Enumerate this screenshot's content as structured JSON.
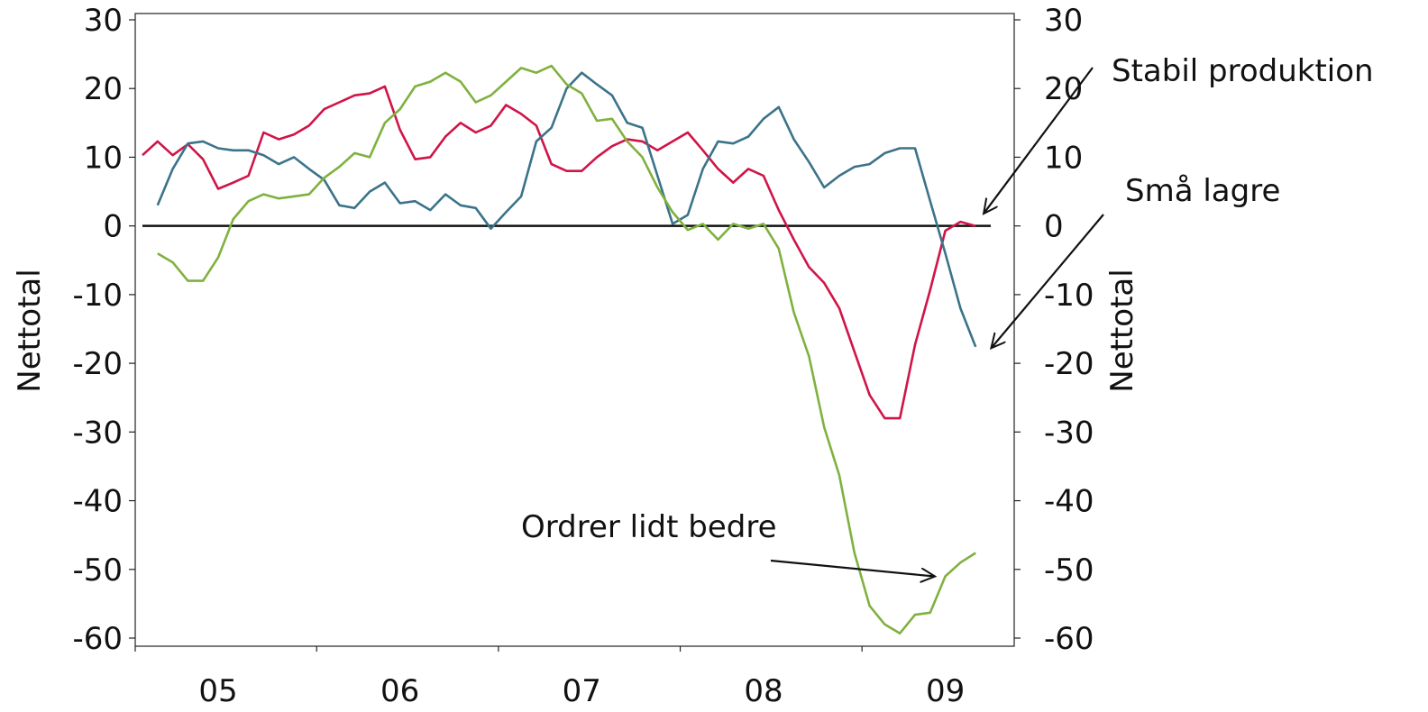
{
  "chart_data": {
    "type": "line",
    "title": "",
    "ylabel_left": "Nettotal",
    "ylabel_right": "Nettotal",
    "ylim": [
      -60,
      30
    ],
    "yticks": [
      30,
      20,
      10,
      0,
      -10,
      -20,
      -30,
      -40,
      -50,
      -60
    ],
    "xticks": [
      {
        "label": "05",
        "month": 6
      },
      {
        "label": "06",
        "month": 18
      },
      {
        "label": "07",
        "month": 30
      },
      {
        "label": "08",
        "month": 42
      },
      {
        "label": "09",
        "month": 54
      }
    ],
    "x_start_month": 1,
    "x_end_month": 57,
    "zero_line": true,
    "grid": false,
    "series": [
      {
        "name": "",
        "color": "#d01448",
        "start_month": 1,
        "values": [
          10.3,
          12.3,
          10.3,
          11.9,
          9.7,
          5.4,
          6.3,
          7.3,
          13.6,
          12.6,
          13.3,
          14.6,
          17.0,
          18.0,
          19.0,
          19.3,
          20.3,
          14.0,
          9.7,
          10.0,
          13.0,
          15.0,
          13.6,
          14.6,
          17.6,
          16.3,
          14.6,
          9.0,
          8.0,
          8.0,
          10.0,
          11.6,
          12.6,
          12.3,
          11.0,
          12.3,
          13.6,
          11.0,
          8.3,
          6.3,
          8.3,
          7.3,
          2.3,
          -2.0,
          -6.0,
          -8.3,
          -12.0,
          -18.3,
          -24.6,
          -28.0,
          -28.0,
          -17.3,
          -9.3,
          -0.7,
          0.6,
          0.0
        ]
      },
      {
        "name": "",
        "color": "#3b7389",
        "start_month": 2,
        "values": [
          3.0,
          8.3,
          12.0,
          12.3,
          11.3,
          11.0,
          11.0,
          10.3,
          9.0,
          10.0,
          8.3,
          6.7,
          3.0,
          2.6,
          5.0,
          6.3,
          3.3,
          3.6,
          2.3,
          4.6,
          3.0,
          2.6,
          -0.4,
          2.0,
          4.3,
          12.3,
          14.3,
          20.0,
          22.3,
          20.6,
          19.0,
          15.0,
          14.3,
          7.3,
          0.3,
          1.6,
          8.3,
          12.3,
          12.0,
          13.0,
          15.6,
          17.3,
          12.6,
          9.3,
          5.6,
          7.3,
          8.6,
          9.0,
          10.6,
          11.3,
          11.3,
          3.6,
          -4.0,
          -12.0,
          -17.6
        ]
      },
      {
        "name": "",
        "color": "#7fb13f",
        "start_month": 2,
        "values": [
          -4.0,
          -5.3,
          -8.0,
          -8.0,
          -4.6,
          1.0,
          3.6,
          4.6,
          4.0,
          4.3,
          4.6,
          7.0,
          8.6,
          10.6,
          10.0,
          15.0,
          17.0,
          20.3,
          21.0,
          22.3,
          21.0,
          18.0,
          19.0,
          21.0,
          23.0,
          22.3,
          23.3,
          20.6,
          19.3,
          15.3,
          15.6,
          12.3,
          10.0,
          5.6,
          2.0,
          -0.6,
          0.3,
          -2.0,
          0.3,
          -0.4,
          0.3,
          -3.3,
          -12.6,
          -19.0,
          -29.3,
          -36.3,
          -47.6,
          -55.3,
          -58.0,
          -59.3,
          -56.6,
          -56.3,
          -51.0,
          -49.0,
          -47.6
        ]
      }
    ],
    "annotations": [
      {
        "text": "Stabil produktion",
        "target_month": 56.6,
        "target_value": 2.0
      },
      {
        "text": "Små lagre",
        "target_month": 57.1,
        "target_value": -17.6
      },
      {
        "text": "Ordrer lidt bedre",
        "target_month": 53.2,
        "target_value": -51.0
      }
    ]
  }
}
